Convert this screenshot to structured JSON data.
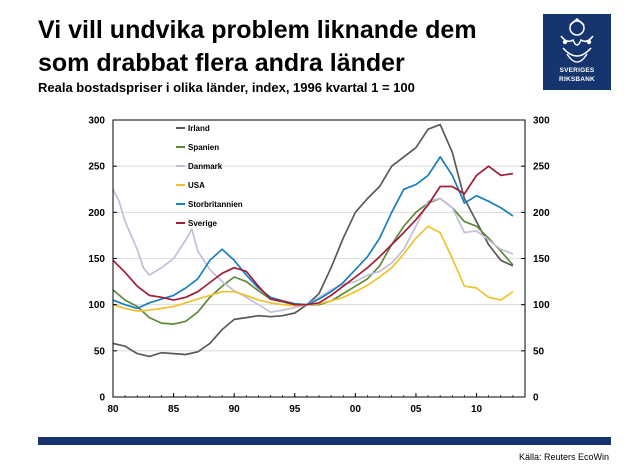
{
  "title": {
    "line1": "Vi vill undvika problem liknande dem",
    "line2": "som drabbat flera andra länder"
  },
  "subtitle": "Reala bostadspriser i olika länder, index, 1996 kvartal 1 = 100",
  "logo": {
    "line1": "SVERIGES",
    "line2": "RIKSBANK",
    "color": "#16356e"
  },
  "source": "Källa: Reuters EcoWin",
  "chart_data": {
    "type": "line",
    "title": "",
    "xlabel": "",
    "ylabel": "",
    "xlim": [
      1980,
      2014
    ],
    "ylim": [
      0,
      300
    ],
    "x_ticks": [
      80,
      85,
      90,
      95,
      0,
      5,
      10
    ],
    "x_tick_labels": [
      "80",
      "85",
      "90",
      "95",
      "00",
      "05",
      "10"
    ],
    "y_ticks": [
      0,
      50,
      100,
      150,
      200,
      250,
      300
    ],
    "y_tick_labels": [
      "0",
      "50",
      "100",
      "150",
      "200",
      "250",
      "300"
    ],
    "grid": true,
    "right_axis_mirror": true,
    "legend_position": "top-left",
    "series": [
      {
        "name": "Irland",
        "color": "#595959",
        "points": [
          [
            1980,
            58
          ],
          [
            1981,
            55
          ],
          [
            1982,
            47
          ],
          [
            1983,
            44
          ],
          [
            1984,
            48
          ],
          [
            1985,
            47
          ],
          [
            1986,
            46
          ],
          [
            1987,
            49
          ],
          [
            1988,
            58
          ],
          [
            1989,
            73
          ],
          [
            1990,
            84
          ],
          [
            1991,
            86
          ],
          [
            1992,
            88
          ],
          [
            1993,
            87
          ],
          [
            1994,
            88
          ],
          [
            1995,
            91
          ],
          [
            1996,
            100
          ],
          [
            1997,
            112
          ],
          [
            1998,
            140
          ],
          [
            1999,
            172
          ],
          [
            2000,
            200
          ],
          [
            2001,
            215
          ],
          [
            2002,
            228
          ],
          [
            2003,
            250
          ],
          [
            2004,
            260
          ],
          [
            2005,
            270
          ],
          [
            2006,
            290
          ],
          [
            2007,
            295
          ],
          [
            2008,
            265
          ],
          [
            2009,
            215
          ],
          [
            2010,
            190
          ],
          [
            2011,
            165
          ],
          [
            2012,
            148
          ],
          [
            2013,
            142
          ]
        ]
      },
      {
        "name": "Spanien",
        "color": "#5e8a3c",
        "points": [
          [
            1980,
            116
          ],
          [
            1981,
            105
          ],
          [
            1982,
            98
          ],
          [
            1983,
            86
          ],
          [
            1984,
            80
          ],
          [
            1985,
            79
          ],
          [
            1986,
            82
          ],
          [
            1987,
            92
          ],
          [
            1988,
            108
          ],
          [
            1989,
            120
          ],
          [
            1990,
            130
          ],
          [
            1991,
            125
          ],
          [
            1992,
            115
          ],
          [
            1993,
            106
          ],
          [
            1994,
            103
          ],
          [
            1995,
            100
          ],
          [
            1996,
            100
          ],
          [
            1997,
            100
          ],
          [
            1998,
            104
          ],
          [
            1999,
            112
          ],
          [
            2000,
            120
          ],
          [
            2001,
            128
          ],
          [
            2002,
            142
          ],
          [
            2003,
            165
          ],
          [
            2004,
            185
          ],
          [
            2005,
            200
          ],
          [
            2006,
            210
          ],
          [
            2007,
            215
          ],
          [
            2008,
            205
          ],
          [
            2009,
            190
          ],
          [
            2010,
            185
          ],
          [
            2011,
            172
          ],
          [
            2012,
            158
          ],
          [
            2013,
            143
          ]
        ]
      },
      {
        "name": "Danmark",
        "color": "#c4bfd8",
        "points": [
          [
            1980,
            225
          ],
          [
            1980.5,
            212
          ],
          [
            1981,
            190
          ],
          [
            1982,
            160
          ],
          [
            1982.5,
            140
          ],
          [
            1983,
            132
          ],
          [
            1984,
            140
          ],
          [
            1985,
            150
          ],
          [
            1986,
            170
          ],
          [
            1986.5,
            182
          ],
          [
            1987,
            158
          ],
          [
            1988,
            138
          ],
          [
            1989,
            125
          ],
          [
            1990,
            115
          ],
          [
            1991,
            108
          ],
          [
            1992,
            100
          ],
          [
            1993,
            92
          ],
          [
            1994,
            94
          ],
          [
            1995,
            97
          ],
          [
            1996,
            100
          ],
          [
            1997,
            108
          ],
          [
            1998,
            116
          ],
          [
            1999,
            122
          ],
          [
            2000,
            125
          ],
          [
            2001,
            132
          ],
          [
            2002,
            136
          ],
          [
            2003,
            145
          ],
          [
            2004,
            160
          ],
          [
            2005,
            185
          ],
          [
            2006,
            212
          ],
          [
            2007,
            215
          ],
          [
            2008,
            205
          ],
          [
            2009,
            178
          ],
          [
            2010,
            180
          ],
          [
            2011,
            170
          ],
          [
            2012,
            160
          ],
          [
            2013,
            155
          ]
        ]
      },
      {
        "name": "USA",
        "color": "#f2c12e",
        "points": [
          [
            1980,
            100
          ],
          [
            1981,
            96
          ],
          [
            1982,
            93
          ],
          [
            1983,
            94
          ],
          [
            1984,
            96
          ],
          [
            1985,
            98
          ],
          [
            1986,
            102
          ],
          [
            1987,
            106
          ],
          [
            1988,
            110
          ],
          [
            1989,
            114
          ],
          [
            1990,
            114
          ],
          [
            1991,
            110
          ],
          [
            1992,
            105
          ],
          [
            1993,
            102
          ],
          [
            1994,
            100
          ],
          [
            1995,
            99
          ],
          [
            1996,
            100
          ],
          [
            1997,
            101
          ],
          [
            1998,
            104
          ],
          [
            1999,
            108
          ],
          [
            2000,
            114
          ],
          [
            2001,
            121
          ],
          [
            2002,
            130
          ],
          [
            2003,
            140
          ],
          [
            2004,
            155
          ],
          [
            2005,
            172
          ],
          [
            2006,
            185
          ],
          [
            2007,
            178
          ],
          [
            2008,
            150
          ],
          [
            2009,
            120
          ],
          [
            2010,
            118
          ],
          [
            2011,
            108
          ],
          [
            2012,
            105
          ],
          [
            2013,
            114
          ]
        ]
      },
      {
        "name": "Storbritannien",
        "color": "#1b7ec0",
        "points": [
          [
            1980,
            105
          ],
          [
            1981,
            100
          ],
          [
            1982,
            96
          ],
          [
            1983,
            102
          ],
          [
            1984,
            106
          ],
          [
            1985,
            110
          ],
          [
            1986,
            118
          ],
          [
            1987,
            128
          ],
          [
            1988,
            148
          ],
          [
            1989,
            160
          ],
          [
            1990,
            148
          ],
          [
            1991,
            132
          ],
          [
            1992,
            118
          ],
          [
            1993,
            108
          ],
          [
            1994,
            104
          ],
          [
            1995,
            101
          ],
          [
            1996,
            100
          ],
          [
            1997,
            106
          ],
          [
            1998,
            114
          ],
          [
            1999,
            124
          ],
          [
            2000,
            138
          ],
          [
            2001,
            152
          ],
          [
            2002,
            172
          ],
          [
            2003,
            200
          ],
          [
            2004,
            225
          ],
          [
            2005,
            230
          ],
          [
            2006,
            240
          ],
          [
            2007,
            260
          ],
          [
            2008,
            240
          ],
          [
            2009,
            210
          ],
          [
            2010,
            218
          ],
          [
            2011,
            212
          ],
          [
            2012,
            205
          ],
          [
            2013,
            196
          ]
        ]
      },
      {
        "name": "Sverige",
        "color": "#a11d3a",
        "points": [
          [
            1980,
            148
          ],
          [
            1981,
            135
          ],
          [
            1982,
            120
          ],
          [
            1983,
            110
          ],
          [
            1984,
            108
          ],
          [
            1985,
            105
          ],
          [
            1986,
            108
          ],
          [
            1987,
            114
          ],
          [
            1988,
            124
          ],
          [
            1989,
            134
          ],
          [
            1990,
            140
          ],
          [
            1991,
            136
          ],
          [
            1992,
            120
          ],
          [
            1993,
            106
          ],
          [
            1994,
            104
          ],
          [
            1995,
            100
          ],
          [
            1996,
            100
          ],
          [
            1997,
            102
          ],
          [
            1998,
            110
          ],
          [
            1999,
            120
          ],
          [
            2000,
            130
          ],
          [
            2001,
            140
          ],
          [
            2002,
            152
          ],
          [
            2003,
            165
          ],
          [
            2004,
            178
          ],
          [
            2005,
            192
          ],
          [
            2006,
            208
          ],
          [
            2007,
            228
          ],
          [
            2008,
            228
          ],
          [
            2009,
            220
          ],
          [
            2010,
            240
          ],
          [
            2011,
            250
          ],
          [
            2012,
            240
          ],
          [
            2013,
            242
          ]
        ]
      }
    ]
  }
}
